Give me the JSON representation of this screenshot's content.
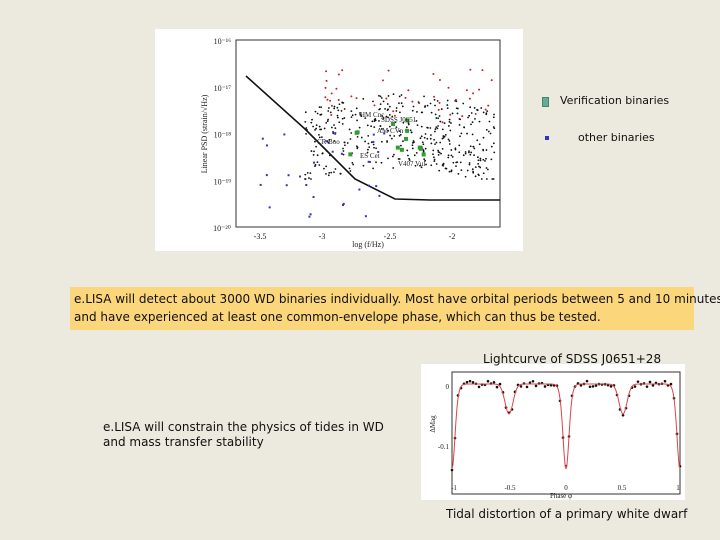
{
  "plot_figure": {
    "y_ticks": [
      "10⁻¹⁶",
      "10⁻¹⁷",
      "10⁻¹⁸",
      "10⁻¹⁹",
      "10⁻²⁰"
    ],
    "x_ticks": [
      "-3.5",
      "-3",
      "-2.5",
      "-2"
    ],
    "x_label": "log (f/Hz)",
    "y_label": "Linear PSD (strain/√Hz)",
    "source_labels": [
      "HM Cnc",
      "SDSS J0651",
      "AM CVn",
      "CR Boo",
      "ES Cet",
      "V407 Vul"
    ]
  },
  "legend": {
    "verification": "Verification binaries",
    "other": "other binaries"
  },
  "callout": {
    "lines": [
      "e.LISA will detect about 3000 WD binaries individually. Most have orbital periods between 5 and 10 minutes",
      "and have experienced at least one common-envelope phase, which can thus be tested."
    ]
  },
  "lightcurve": {
    "title": "Lightcurve of SDSS J0651+28",
    "x_ticks": [
      "-1",
      "-0.5",
      "0",
      "0.5",
      "1"
    ],
    "y_ticks": [
      "0",
      "-0.1"
    ],
    "x_label": "Phase φ",
    "y_label": "ΔMag"
  },
  "note": {
    "lines": [
      "e.LISA will constrain the physics of tides in WD",
      "and mass transfer stability"
    ]
  },
  "caption": "Tidal distortion of a primary white dwarf"
}
